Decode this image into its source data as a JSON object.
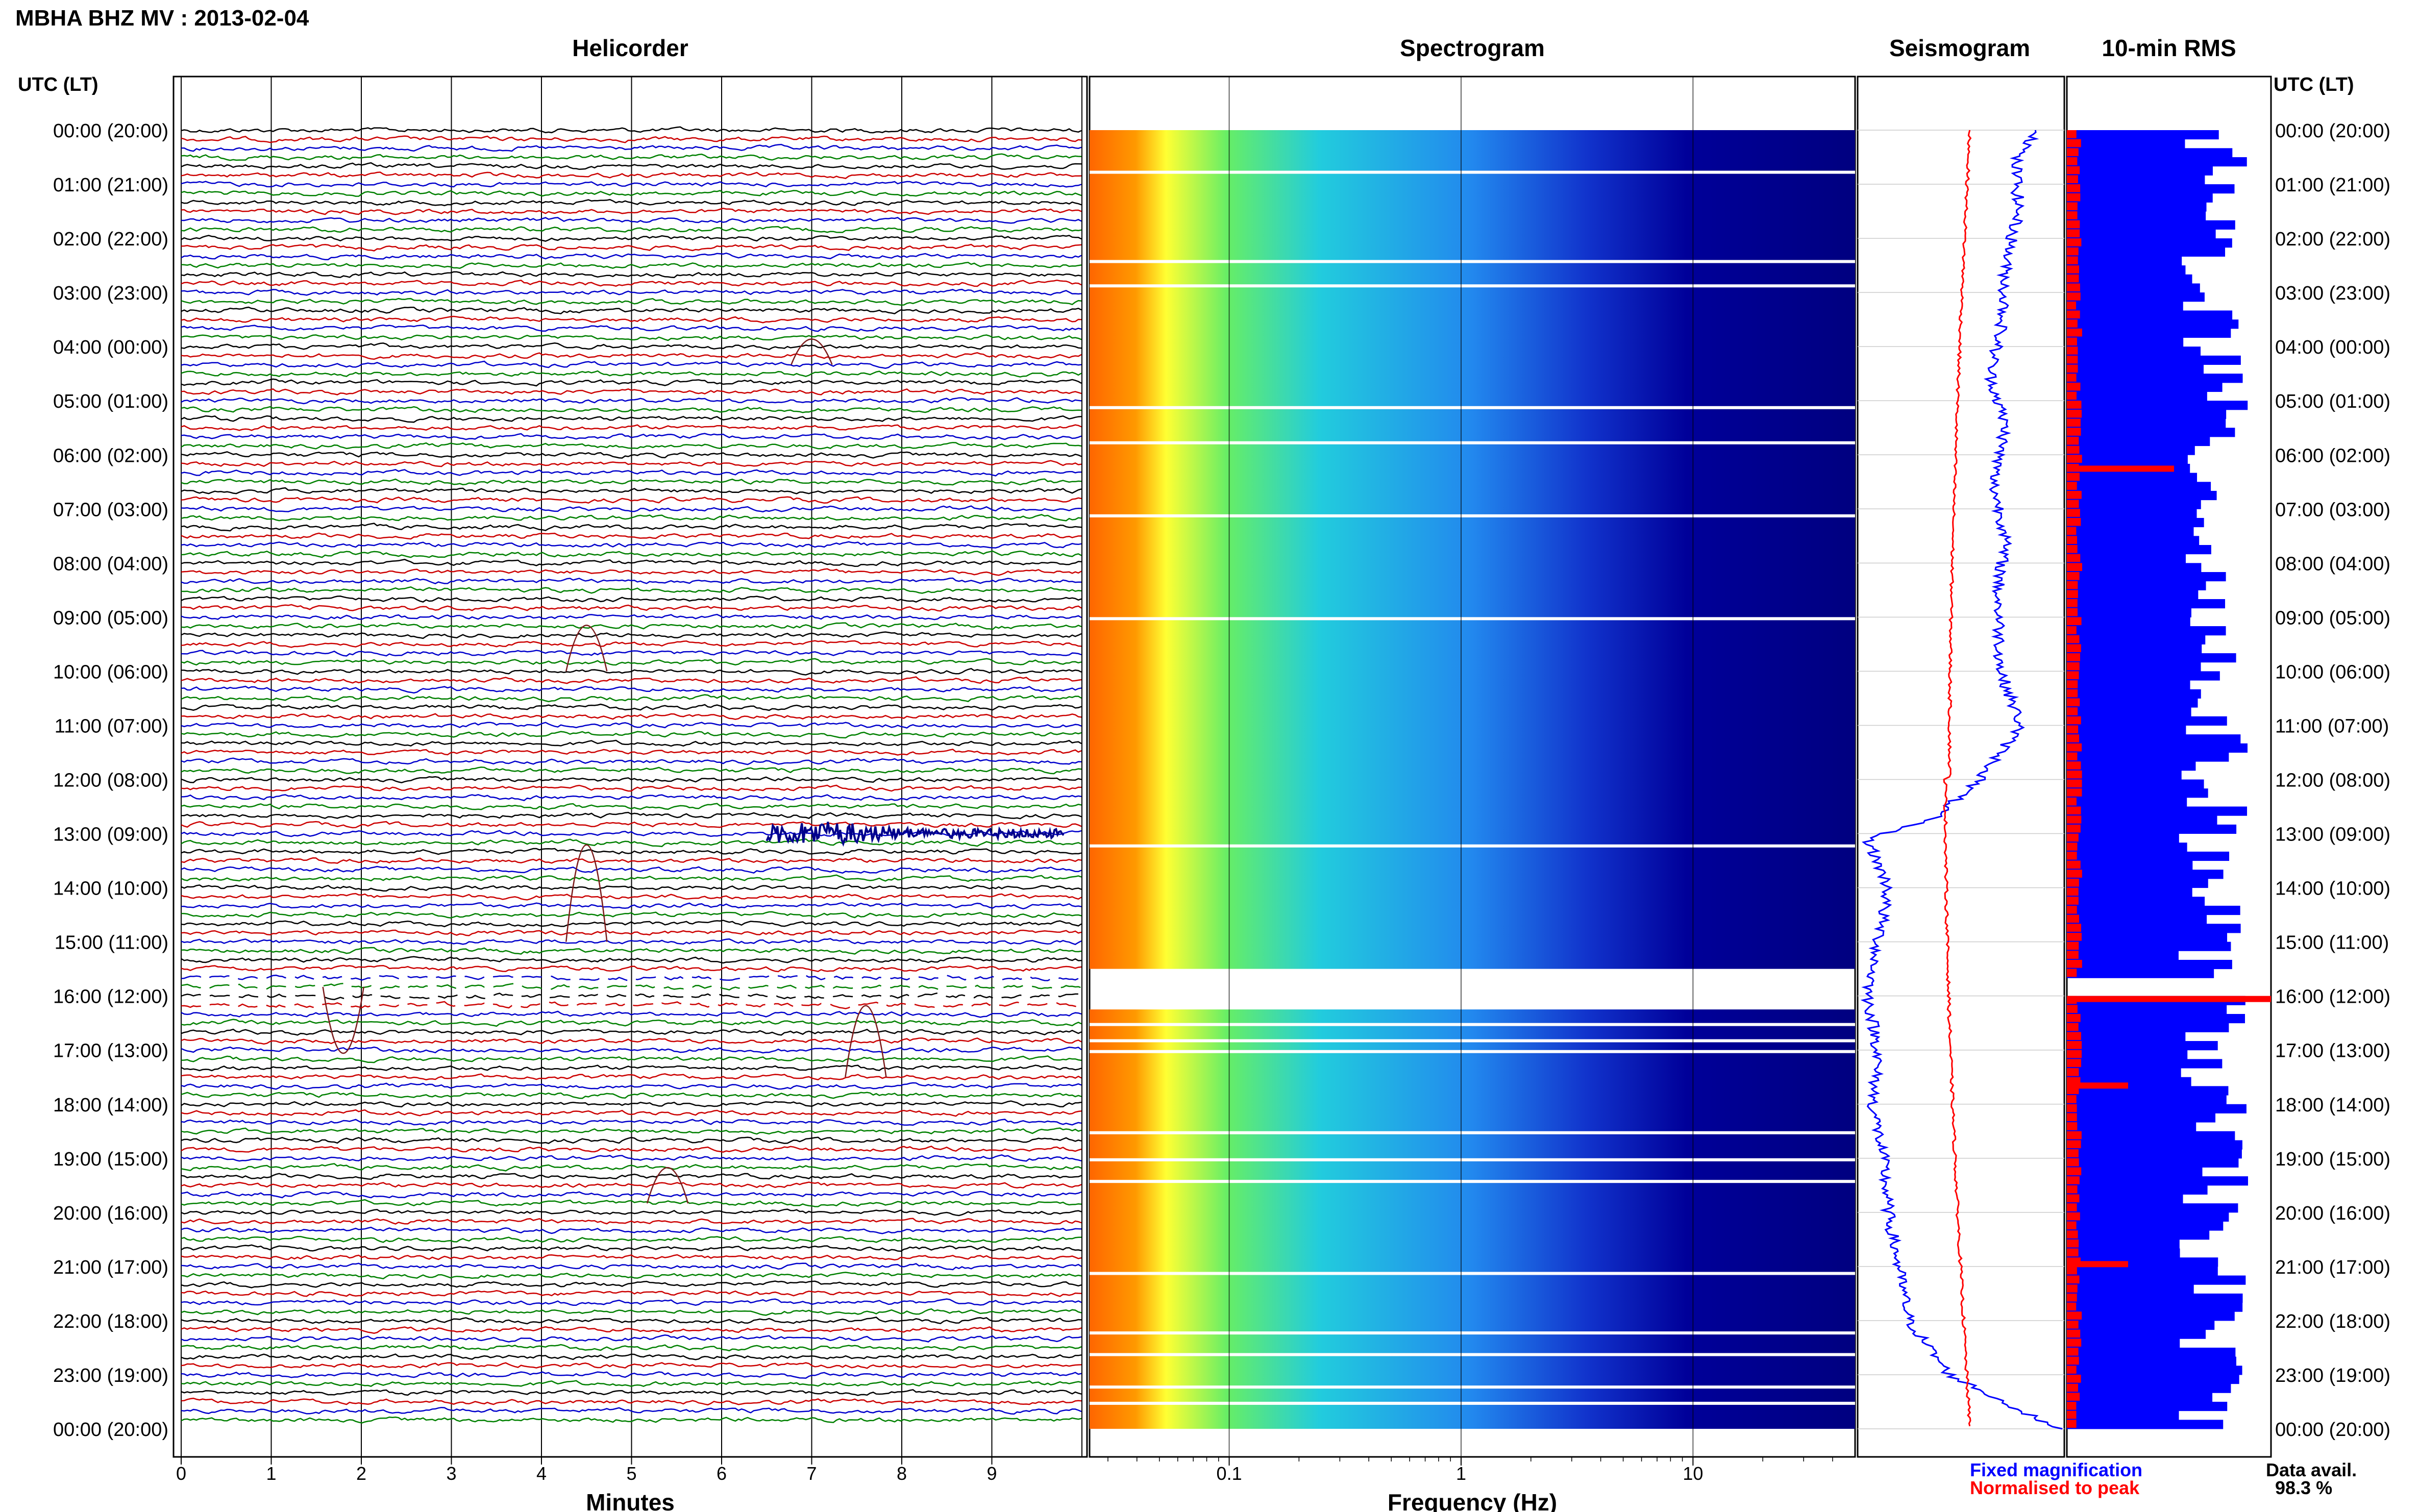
{
  "header": {
    "title": "MBHA BHZ MV : 2013-02-04",
    "axis_header_left": "UTC (LT)",
    "axis_header_right": "UTC (LT)"
  },
  "panels": {
    "helicorder": "Helicorder",
    "spectrogram": "Spectrogram",
    "seismogram": "Seismogram",
    "rms": "10-min RMS"
  },
  "xlabels": {
    "helicorder": "Minutes",
    "spectrogram": "Frequency (Hz)"
  },
  "legend": {
    "fixed": "Fixed magnification",
    "normalised": "Normalised to peak",
    "fixed_color": "#0000ff",
    "normalised_color": "#ff0000"
  },
  "data_avail": {
    "label": "Data avail.",
    "value": "98.3 %"
  },
  "chart_data": {
    "type": "helicorder",
    "time_labels": [
      "00:00 (20:00)",
      "01:00 (21:00)",
      "02:00 (22:00)",
      "03:00 (23:00)",
      "04:00 (00:00)",
      "05:00 (01:00)",
      "06:00 (02:00)",
      "07:00 (03:00)",
      "08:00 (04:00)",
      "09:00 (05:00)",
      "10:00 (06:00)",
      "11:00 (07:00)",
      "12:00 (08:00)",
      "13:00 (09:00)",
      "14:00 (10:00)",
      "15:00 (11:00)",
      "16:00 (12:00)",
      "17:00 (13:00)",
      "18:00 (14:00)",
      "19:00 (15:00)",
      "20:00 (16:00)",
      "21:00 (17:00)",
      "22:00 (18:00)",
      "23:00 (19:00)",
      "00:00 (20:00)"
    ],
    "helicorder_xticks": [
      "0",
      "1",
      "2",
      "3",
      "4",
      "5",
      "6",
      "7",
      "8",
      "9"
    ],
    "helicorder_xlim": [
      0,
      10
    ],
    "spectrogram_xticks": [
      "0.1",
      "1",
      "10"
    ],
    "spectrogram_xlim": [
      0.025,
      50
    ],
    "spectrogram_xscale": "log",
    "trace_colors": [
      "#000000",
      "#cc0000",
      "#0000cc",
      "#008000"
    ],
    "spectrogram_gaps_hours": [
      [
        15.5,
        16.25
      ]
    ],
    "rms_peaks_hours": [
      6.2,
      16.0,
      17.6,
      20.9
    ]
  }
}
